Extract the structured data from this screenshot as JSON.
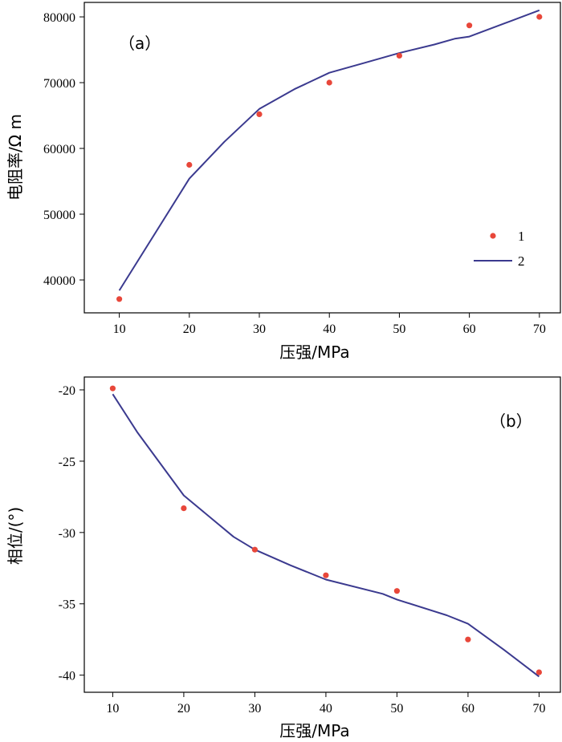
{
  "colors": {
    "points": "#e8473a",
    "line": "#3b3a8f",
    "axis": "#000000"
  },
  "chart_data": [
    {
      "type": "line",
      "panel_label": "（a）",
      "xlabel": "压强/MPa",
      "ylabel": "电阻率/Ω m",
      "xlim": [
        5,
        73
      ],
      "ylim": [
        35000,
        82200
      ],
      "xticks": [
        10,
        20,
        30,
        40,
        50,
        60,
        70
      ],
      "yticks": [
        40000,
        50000,
        60000,
        70000,
        80000
      ],
      "legend": {
        "position": "bottom-right",
        "entries": [
          "1",
          "2"
        ]
      },
      "series": [
        {
          "name": "1",
          "kind": "scatter",
          "x": [
            10,
            20,
            30,
            40,
            50,
            60,
            70
          ],
          "y": [
            37100,
            57500,
            65200,
            70000,
            74100,
            78700,
            80000
          ]
        },
        {
          "name": "2",
          "kind": "line",
          "x": [
            10,
            20,
            25,
            30,
            35,
            40,
            45,
            50,
            55,
            58,
            60,
            65,
            70
          ],
          "y": [
            38400,
            55400,
            61000,
            66000,
            69000,
            71500,
            73000,
            74500,
            75800,
            76700,
            77000,
            79000,
            81000
          ]
        }
      ]
    },
    {
      "type": "line",
      "panel_label": "（b）",
      "xlabel": "压强/MPa",
      "ylabel": "相位/(°)",
      "xlim": [
        6,
        73
      ],
      "ylim": [
        -41.2,
        -19.1
      ],
      "xticks": [
        10,
        20,
        30,
        40,
        50,
        60,
        70
      ],
      "yticks": [
        -20,
        -25,
        -30,
        -35,
        -40
      ],
      "series": [
        {
          "name": "1",
          "kind": "scatter",
          "x": [
            10,
            20,
            30,
            40,
            50,
            60,
            70
          ],
          "y": [
            -19.9,
            -28.3,
            -31.2,
            -33.0,
            -34.1,
            -37.5,
            -39.8
          ]
        },
        {
          "name": "2",
          "kind": "line",
          "x": [
            10,
            13.5,
            20,
            27,
            30,
            35,
            40,
            48,
            50,
            57,
            60,
            65,
            70
          ],
          "y": [
            -20.3,
            -23.0,
            -27.4,
            -30.3,
            -31.2,
            -32.3,
            -33.3,
            -34.3,
            -34.7,
            -35.8,
            -36.4,
            -38.2,
            -40.1
          ]
        }
      ]
    }
  ]
}
